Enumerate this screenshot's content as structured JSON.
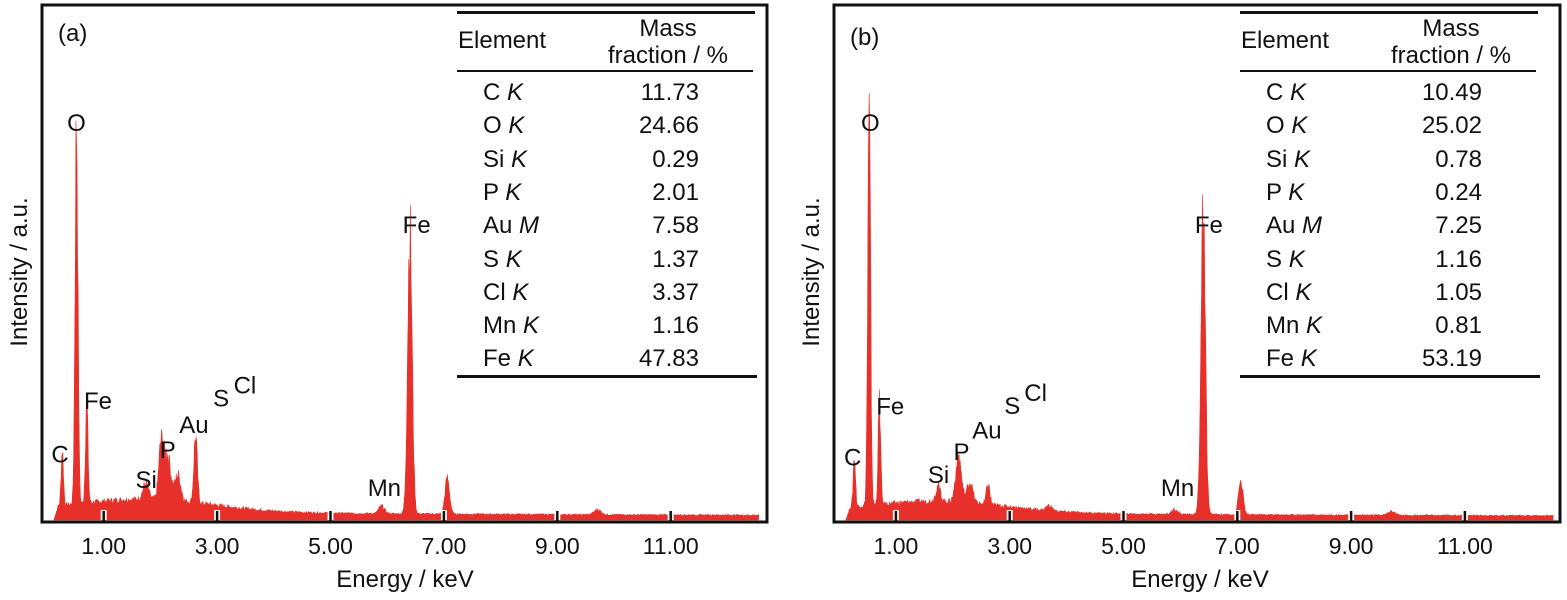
{
  "chart_data": [
    {
      "type": "area",
      "panel_label": "(a)",
      "xlabel": "Energy / keV",
      "ylabel": "Intensity / a.u.",
      "xlim": [
        0,
        12.7
      ],
      "ylim": [
        0,
        1
      ],
      "xticks": [
        "1.00",
        "3.00",
        "5.00",
        "7.00",
        "9.00",
        "11.00"
      ],
      "xtick_values": [
        1,
        3,
        5,
        7,
        9,
        11
      ],
      "series_color": "#e8302a",
      "continuum": 0.02,
      "peaks": [
        {
          "energy": 0.27,
          "intensity": 0.11,
          "width": 0.02
        },
        {
          "energy": 0.52,
          "intensity": 0.75,
          "width": 0.025
        },
        {
          "energy": 0.7,
          "intensity": 0.2,
          "width": 0.022
        },
        {
          "energy": 1.74,
          "intensity": 0.03,
          "width": 0.05
        },
        {
          "energy": 2.01,
          "intensity": 0.1,
          "width": 0.04
        },
        {
          "energy": 2.12,
          "intensity": 0.09,
          "width": 0.06
        },
        {
          "energy": 2.31,
          "intensity": 0.05,
          "width": 0.05
        },
        {
          "energy": 2.62,
          "intensity": 0.13,
          "width": 0.03
        },
        {
          "energy": 5.9,
          "intensity": 0.015,
          "width": 0.05
        },
        {
          "energy": 6.4,
          "intensity": 0.55,
          "width": 0.04
        },
        {
          "energy": 7.06,
          "intensity": 0.07,
          "width": 0.04
        },
        {
          "energy": 9.71,
          "intensity": 0.01,
          "width": 0.06
        }
      ],
      "annotations": [
        {
          "text": "C",
          "energy": 0.23,
          "intensity": 0.13
        },
        {
          "text": "O",
          "energy": 0.52,
          "intensity": 0.78
        },
        {
          "text": "Fe",
          "energy": 0.9,
          "intensity": 0.235
        },
        {
          "text": "Si",
          "energy": 1.75,
          "intensity": 0.08
        },
        {
          "text": "P",
          "energy": 1.97,
          "intensity": 0.135
        },
        {
          "text": "Au",
          "energy": 2.22,
          "intensity": 0.18
        },
        {
          "text": "S",
          "energy": 2.33,
          "intensity": 0.225
        },
        {
          "text": "Cl",
          "energy": 2.75,
          "intensity": 0.25
        },
        {
          "text": "Mn",
          "energy": 5.95,
          "intensity": 0.065
        },
        {
          "text": "Fe",
          "energy": 6.52,
          "intensity": 0.58
        }
      ],
      "table": {
        "header_element": "Element",
        "header_mass_1": "Mass",
        "header_mass_2": "fraction / %",
        "rows": [
          {
            "element": "C",
            "line": "K",
            "value": "11.73"
          },
          {
            "element": "O",
            "line": "K",
            "value": "24.66"
          },
          {
            "element": "Si",
            "line": "K",
            "value": "0.29"
          },
          {
            "element": "P",
            "line": "K",
            "value": "2.01"
          },
          {
            "element": "Au",
            "line": "M",
            "value": "7.58"
          },
          {
            "element": "S",
            "line": "K",
            "value": "1.37"
          },
          {
            "element": "Cl",
            "line": "K",
            "value": "3.37"
          },
          {
            "element": "Mn",
            "line": "K",
            "value": "1.16"
          },
          {
            "element": "Fe",
            "line": "K",
            "value": "47.83"
          }
        ]
      }
    },
    {
      "type": "area",
      "panel_label": "(b)",
      "xlabel": "Energy / keV",
      "ylabel": "Intensity / a.u.",
      "xlim": [
        0,
        12.7
      ],
      "ylim": [
        0,
        1
      ],
      "xticks": [
        "1.00",
        "3.00",
        "5.00",
        "7.00",
        "9.00",
        "11.00"
      ],
      "xtick_values": [
        1,
        3,
        5,
        7,
        9,
        11
      ],
      "series_color": "#e8302a",
      "continuum": 0.018,
      "peaks": [
        {
          "energy": 0.27,
          "intensity": 0.1,
          "width": 0.02
        },
        {
          "energy": 0.53,
          "intensity": 0.745,
          "width": 0.025
        },
        {
          "energy": 0.71,
          "intensity": 0.2,
          "width": 0.022
        },
        {
          "energy": 1.74,
          "intensity": 0.03,
          "width": 0.04
        },
        {
          "energy": 2.1,
          "intensity": 0.09,
          "width": 0.05
        },
        {
          "energy": 2.3,
          "intensity": 0.04,
          "width": 0.05
        },
        {
          "energy": 2.62,
          "intensity": 0.04,
          "width": 0.03
        },
        {
          "energy": 3.69,
          "intensity": 0.01,
          "width": 0.05
        },
        {
          "energy": 5.9,
          "intensity": 0.01,
          "width": 0.05
        },
        {
          "energy": 6.4,
          "intensity": 0.565,
          "width": 0.04
        },
        {
          "energy": 7.06,
          "intensity": 0.065,
          "width": 0.04
        },
        {
          "energy": 9.71,
          "intensity": 0.008,
          "width": 0.06
        }
      ],
      "annotations": [
        {
          "text": "C",
          "energy": 0.24,
          "intensity": 0.125
        },
        {
          "text": "O",
          "energy": 0.55,
          "intensity": 0.78
        },
        {
          "text": "Fe",
          "energy": 0.9,
          "intensity": 0.225
        },
        {
          "text": "Si",
          "energy": 1.75,
          "intensity": 0.09
        },
        {
          "text": "P",
          "energy": 2.1,
          "intensity": 0.135
        },
        {
          "text": "Au",
          "energy": 2.23,
          "intensity": 0.17
        },
        {
          "text": "S",
          "energy": 2.36,
          "intensity": 0.21
        },
        {
          "text": "Cl",
          "energy": 2.77,
          "intensity": 0.235
        },
        {
          "text": "Mn",
          "energy": 5.95,
          "intensity": 0.065
        },
        {
          "text": "Fe",
          "energy": 6.5,
          "intensity": 0.58
        }
      ],
      "table": {
        "header_element": "Element",
        "header_mass_1": "Mass",
        "header_mass_2": "fraction / %",
        "rows": [
          {
            "element": "C",
            "line": "K",
            "value": "10.49"
          },
          {
            "element": "O",
            "line": "K",
            "value": "25.02"
          },
          {
            "element": "Si",
            "line": "K",
            "value": "0.78"
          },
          {
            "element": "P",
            "line": "K",
            "value": "0.24"
          },
          {
            "element": "Au",
            "line": "M",
            "value": "7.25"
          },
          {
            "element": "S",
            "line": "K",
            "value": "1.16"
          },
          {
            "element": "Cl",
            "line": "K",
            "value": "1.05"
          },
          {
            "element": "Mn",
            "line": "K",
            "value": "0.81"
          },
          {
            "element": "Fe",
            "line": "K",
            "value": "53.19"
          }
        ]
      }
    }
  ]
}
